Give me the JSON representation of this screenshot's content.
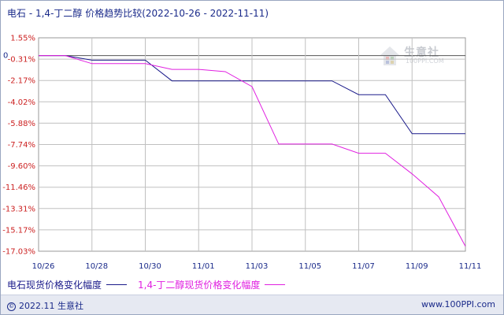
{
  "title": {
    "product_a": "电石",
    "sep": " - ",
    "product_b": "1,4-丁二醇",
    "metric": " 价格趋势比较",
    "range": "(2022-10-26 - 2022-11-11)"
  },
  "colors": {
    "series_a": "#1a1a8a",
    "series_b": "#e020e0",
    "grid": "#c0c0c0",
    "tick_positive": "#cc2222",
    "tick_negative": "#cc2222",
    "axis_text": "#1a2a8a"
  },
  "chart_data": {
    "type": "line",
    "title": "电石 - 1,4-丁二醇 价格趋势比较(2022-10-26 - 2022-11-11)",
    "xlabel": "",
    "ylabel": "",
    "x_ticks": [
      "10/26",
      "10/28",
      "10/30",
      "11/01",
      "11/03",
      "11/05",
      "11/07",
      "11/09",
      "11/11"
    ],
    "y_ticks": [
      "1.55%",
      "-0.31%",
      "-2.17%",
      "-4.02%",
      "-5.88%",
      "-7.74%",
      "-9.60%",
      "-11.46%",
      "-13.31%",
      "-15.17%",
      "-17.03%"
    ],
    "y_zero_label": "0",
    "ylim": [
      -17.03,
      1.55
    ],
    "grid": true,
    "legend_position": "bottom",
    "x": [
      "10/26",
      "10/27",
      "10/28",
      "10/29",
      "10/30",
      "10/31",
      "11/01",
      "11/02",
      "11/03",
      "11/04",
      "11/05",
      "11/06",
      "11/07",
      "11/08",
      "11/09",
      "11/10",
      "11/11"
    ],
    "series": [
      {
        "name": "电石现货价格变化幅度",
        "color": "#1a1a8a",
        "values": [
          0,
          0,
          -0.4,
          -0.4,
          -0.4,
          -2.2,
          -2.2,
          -2.2,
          -2.2,
          -2.2,
          -2.2,
          -2.2,
          -3.4,
          -3.4,
          -6.8,
          -6.8,
          -6.8
        ]
      },
      {
        "name": "1,4-丁二醇现货价格变化幅度",
        "color": "#e020e0",
        "values": [
          0,
          0,
          -0.7,
          -0.7,
          -0.7,
          -1.2,
          -1.2,
          -1.4,
          -2.7,
          -7.7,
          -7.7,
          -7.7,
          -8.5,
          -8.5,
          -10.3,
          -12.3,
          -16.6
        ]
      }
    ]
  },
  "legend": {
    "series_a_label": "电石现货价格变化幅度",
    "series_b_label": "1,4-丁二醇现货价格变化幅度"
  },
  "watermark": {
    "text": "生意社",
    "url": "100PPI.COM"
  },
  "footer": {
    "copyright_icon": "©",
    "left": "2022.11 生意社",
    "right": "www.100PPI.com"
  }
}
